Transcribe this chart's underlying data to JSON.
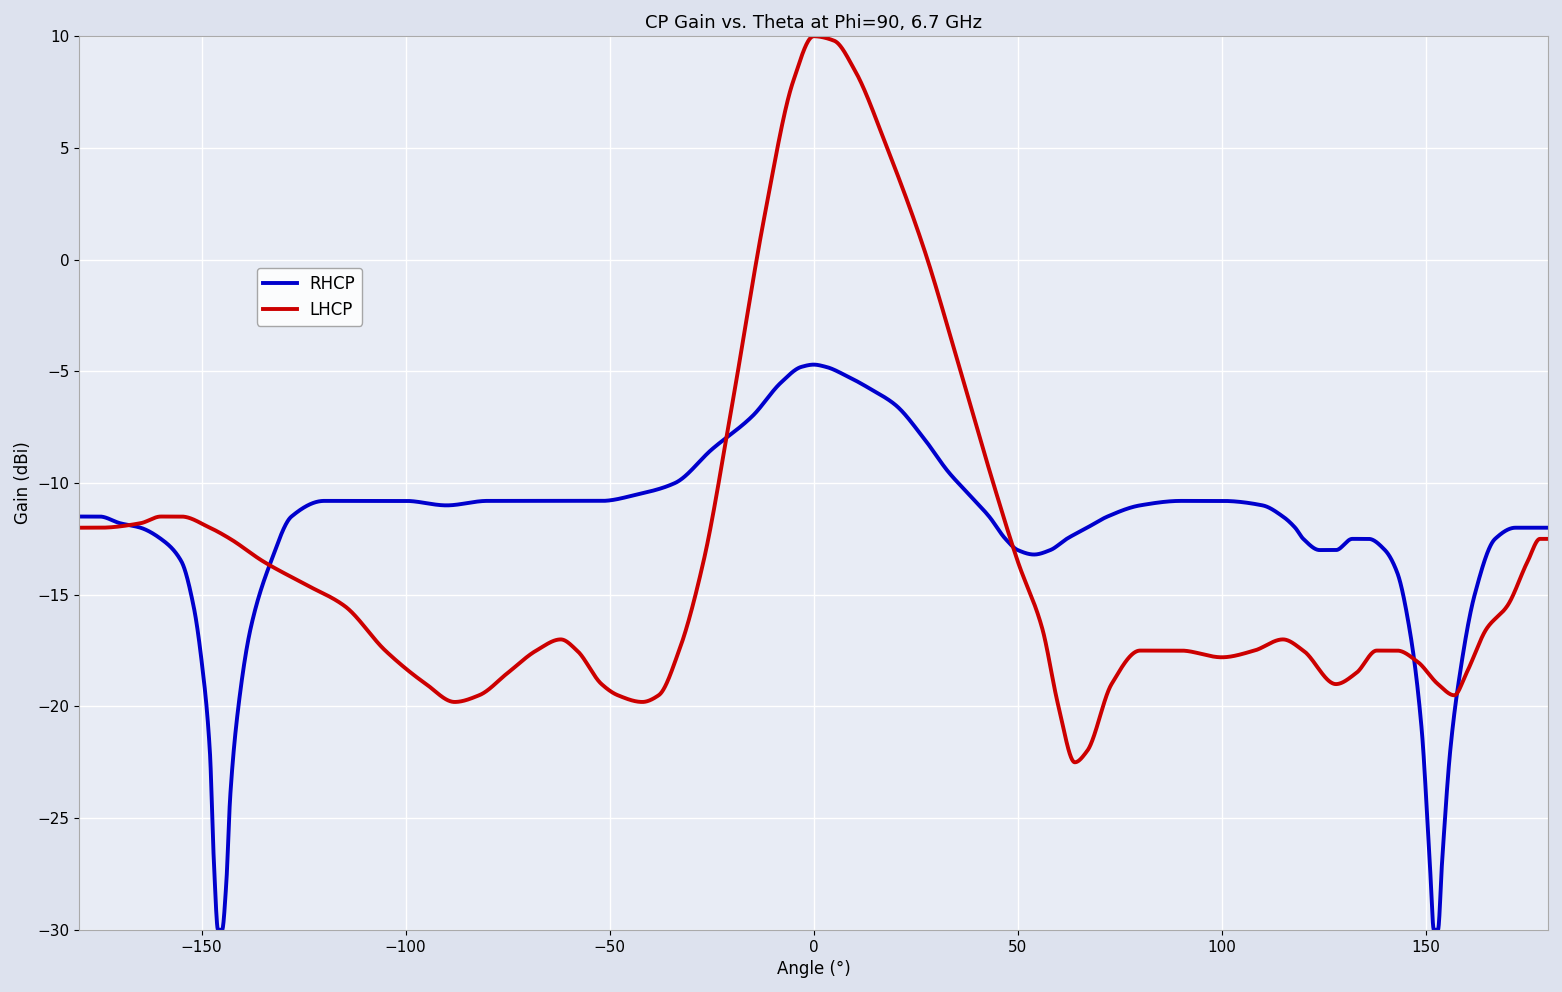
{
  "title": "CP Gain vs. Theta at Phi=90, 6.7 GHz",
  "xlabel": "Angle (°)",
  "ylabel": "Gain (dBi)",
  "xlim": [
    -180,
    180
  ],
  "ylim": [
    -30,
    10
  ],
  "xticks": [
    -150,
    -100,
    -50,
    0,
    50,
    100,
    150
  ],
  "yticks": [
    -30,
    -25,
    -20,
    -15,
    -10,
    -5,
    0,
    5,
    10
  ],
  "rhcp_color": "#0000cc",
  "lhcp_color": "#cc0000",
  "bg_color": "#dde2ee",
  "plot_bg_color": "#e8ecf5",
  "grid_color": "#ffffff",
  "legend_labels": [
    "RHCP",
    "LHCP"
  ],
  "title_fontsize": 13,
  "axis_fontsize": 12,
  "tick_fontsize": 11,
  "line_width": 2.8,
  "lhcp_points": [
    [
      -180,
      -12.0
    ],
    [
      -175,
      -12.0
    ],
    [
      -165,
      -11.8
    ],
    [
      -160,
      -11.5
    ],
    [
      -155,
      -11.5
    ],
    [
      -148,
      -12.0
    ],
    [
      -143,
      -12.5
    ],
    [
      -135,
      -13.5
    ],
    [
      -125,
      -14.5
    ],
    [
      -115,
      -15.5
    ],
    [
      -105,
      -17.5
    ],
    [
      -95,
      -19.0
    ],
    [
      -88,
      -19.8
    ],
    [
      -82,
      -19.5
    ],
    [
      -75,
      -18.5
    ],
    [
      -68,
      -17.5
    ],
    [
      -62,
      -17.0
    ],
    [
      -58,
      -17.5
    ],
    [
      -52,
      -19.0
    ],
    [
      -48,
      -19.5
    ],
    [
      -42,
      -19.8
    ],
    [
      -38,
      -19.5
    ],
    [
      -33,
      -17.5
    ],
    [
      -27,
      -13.5
    ],
    [
      -20,
      -6.5
    ],
    [
      -12,
      2.0
    ],
    [
      -5,
      8.0
    ],
    [
      0,
      10.0
    ],
    [
      5,
      9.8
    ],
    [
      10,
      8.5
    ],
    [
      18,
      5.0
    ],
    [
      27,
      0.5
    ],
    [
      36,
      -5.0
    ],
    [
      44,
      -10.0
    ],
    [
      50,
      -13.5
    ],
    [
      56,
      -16.5
    ],
    [
      60,
      -20.0
    ],
    [
      64,
      -22.5
    ],
    [
      67,
      -22.0
    ],
    [
      73,
      -19.0
    ],
    [
      80,
      -17.5
    ],
    [
      90,
      -17.5
    ],
    [
      100,
      -17.8
    ],
    [
      108,
      -17.5
    ],
    [
      115,
      -17.0
    ],
    [
      120,
      -17.5
    ],
    [
      128,
      -19.0
    ],
    [
      133,
      -18.5
    ],
    [
      138,
      -17.5
    ],
    [
      143,
      -17.5
    ],
    [
      148,
      -18.0
    ],
    [
      153,
      -19.0
    ],
    [
      157,
      -19.5
    ],
    [
      160,
      -18.5
    ],
    [
      165,
      -16.5
    ],
    [
      170,
      -15.5
    ],
    [
      175,
      -13.5
    ],
    [
      178,
      -12.5
    ],
    [
      180,
      -12.5
    ]
  ],
  "rhcp_points": [
    [
      -180,
      -11.5
    ],
    [
      -175,
      -11.5
    ],
    [
      -170,
      -11.8
    ],
    [
      -165,
      -12.0
    ],
    [
      -160,
      -12.5
    ],
    [
      -155,
      -13.5
    ],
    [
      -152,
      -15.5
    ],
    [
      -150,
      -18.0
    ],
    [
      -148,
      -22.0
    ],
    [
      -147,
      -27.0
    ],
    [
      -146,
      -30.0
    ],
    [
      -145,
      -30.0
    ],
    [
      -144,
      -28.0
    ],
    [
      -143,
      -24.0
    ],
    [
      -141,
      -20.0
    ],
    [
      -138,
      -16.5
    ],
    [
      -133,
      -13.5
    ],
    [
      -128,
      -11.5
    ],
    [
      -120,
      -10.8
    ],
    [
      -110,
      -10.8
    ],
    [
      -100,
      -10.8
    ],
    [
      -90,
      -11.0
    ],
    [
      -80,
      -10.8
    ],
    [
      -70,
      -10.8
    ],
    [
      -60,
      -10.8
    ],
    [
      -52,
      -10.8
    ],
    [
      -43,
      -10.5
    ],
    [
      -34,
      -10.0
    ],
    [
      -25,
      -8.5
    ],
    [
      -15,
      -7.0
    ],
    [
      -8,
      -5.5
    ],
    [
      -3,
      -4.8
    ],
    [
      0,
      -4.7
    ],
    [
      3,
      -4.8
    ],
    [
      8,
      -5.2
    ],
    [
      14,
      -5.8
    ],
    [
      20,
      -6.5
    ],
    [
      27,
      -8.0
    ],
    [
      33,
      -9.5
    ],
    [
      38,
      -10.5
    ],
    [
      43,
      -11.5
    ],
    [
      47,
      -12.5
    ],
    [
      50,
      -13.0
    ],
    [
      54,
      -13.2
    ],
    [
      58,
      -13.0
    ],
    [
      62,
      -12.5
    ],
    [
      67,
      -12.0
    ],
    [
      72,
      -11.5
    ],
    [
      80,
      -11.0
    ],
    [
      90,
      -10.8
    ],
    [
      100,
      -10.8
    ],
    [
      110,
      -11.0
    ],
    [
      115,
      -11.5
    ],
    [
      118,
      -12.0
    ],
    [
      120,
      -12.5
    ],
    [
      124,
      -13.0
    ],
    [
      128,
      -13.0
    ],
    [
      132,
      -12.5
    ],
    [
      136,
      -12.5
    ],
    [
      140,
      -13.0
    ],
    [
      143,
      -14.0
    ],
    [
      146,
      -16.5
    ],
    [
      149,
      -21.0
    ],
    [
      151,
      -27.0
    ],
    [
      152,
      -30.0
    ],
    [
      153,
      -30.0
    ],
    [
      154,
      -27.0
    ],
    [
      156,
      -22.0
    ],
    [
      158,
      -19.0
    ],
    [
      162,
      -15.0
    ],
    [
      167,
      -12.5
    ],
    [
      172,
      -12.0
    ],
    [
      177,
      -12.0
    ],
    [
      180,
      -12.0
    ]
  ]
}
